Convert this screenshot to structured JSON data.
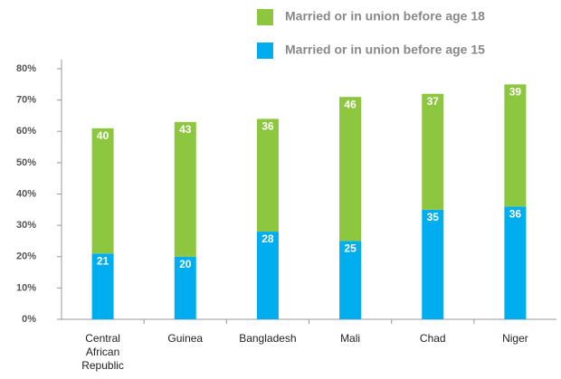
{
  "chart_data": {
    "type": "stacked_bar",
    "categories": [
      "Central African Republic",
      "Guinea",
      "Bangladesh",
      "Mali",
      "Chad",
      "Niger"
    ],
    "series": [
      {
        "name": "Married or in union before age 15",
        "color": "#00aeef",
        "values": [
          21,
          20,
          28,
          25,
          35,
          36
        ]
      },
      {
        "name": "Married or in union before age 18",
        "color": "#8dc63f",
        "values": [
          40,
          43,
          36,
          46,
          37,
          39
        ]
      }
    ],
    "ylim": [
      0,
      80
    ],
    "yticks": [
      {
        "value": 0,
        "label": "0%"
      },
      {
        "value": 10,
        "label": "10%"
      },
      {
        "value": 20,
        "label": "20%"
      },
      {
        "value": 30,
        "label": "30%"
      },
      {
        "value": 40,
        "label": "40%"
      },
      {
        "value": 50,
        "label": "50%"
      },
      {
        "value": 60,
        "label": "60%"
      },
      {
        "value": 70,
        "label": "70%"
      },
      {
        "value": 80,
        "label": "80%"
      }
    ],
    "legend": "top-right"
  }
}
